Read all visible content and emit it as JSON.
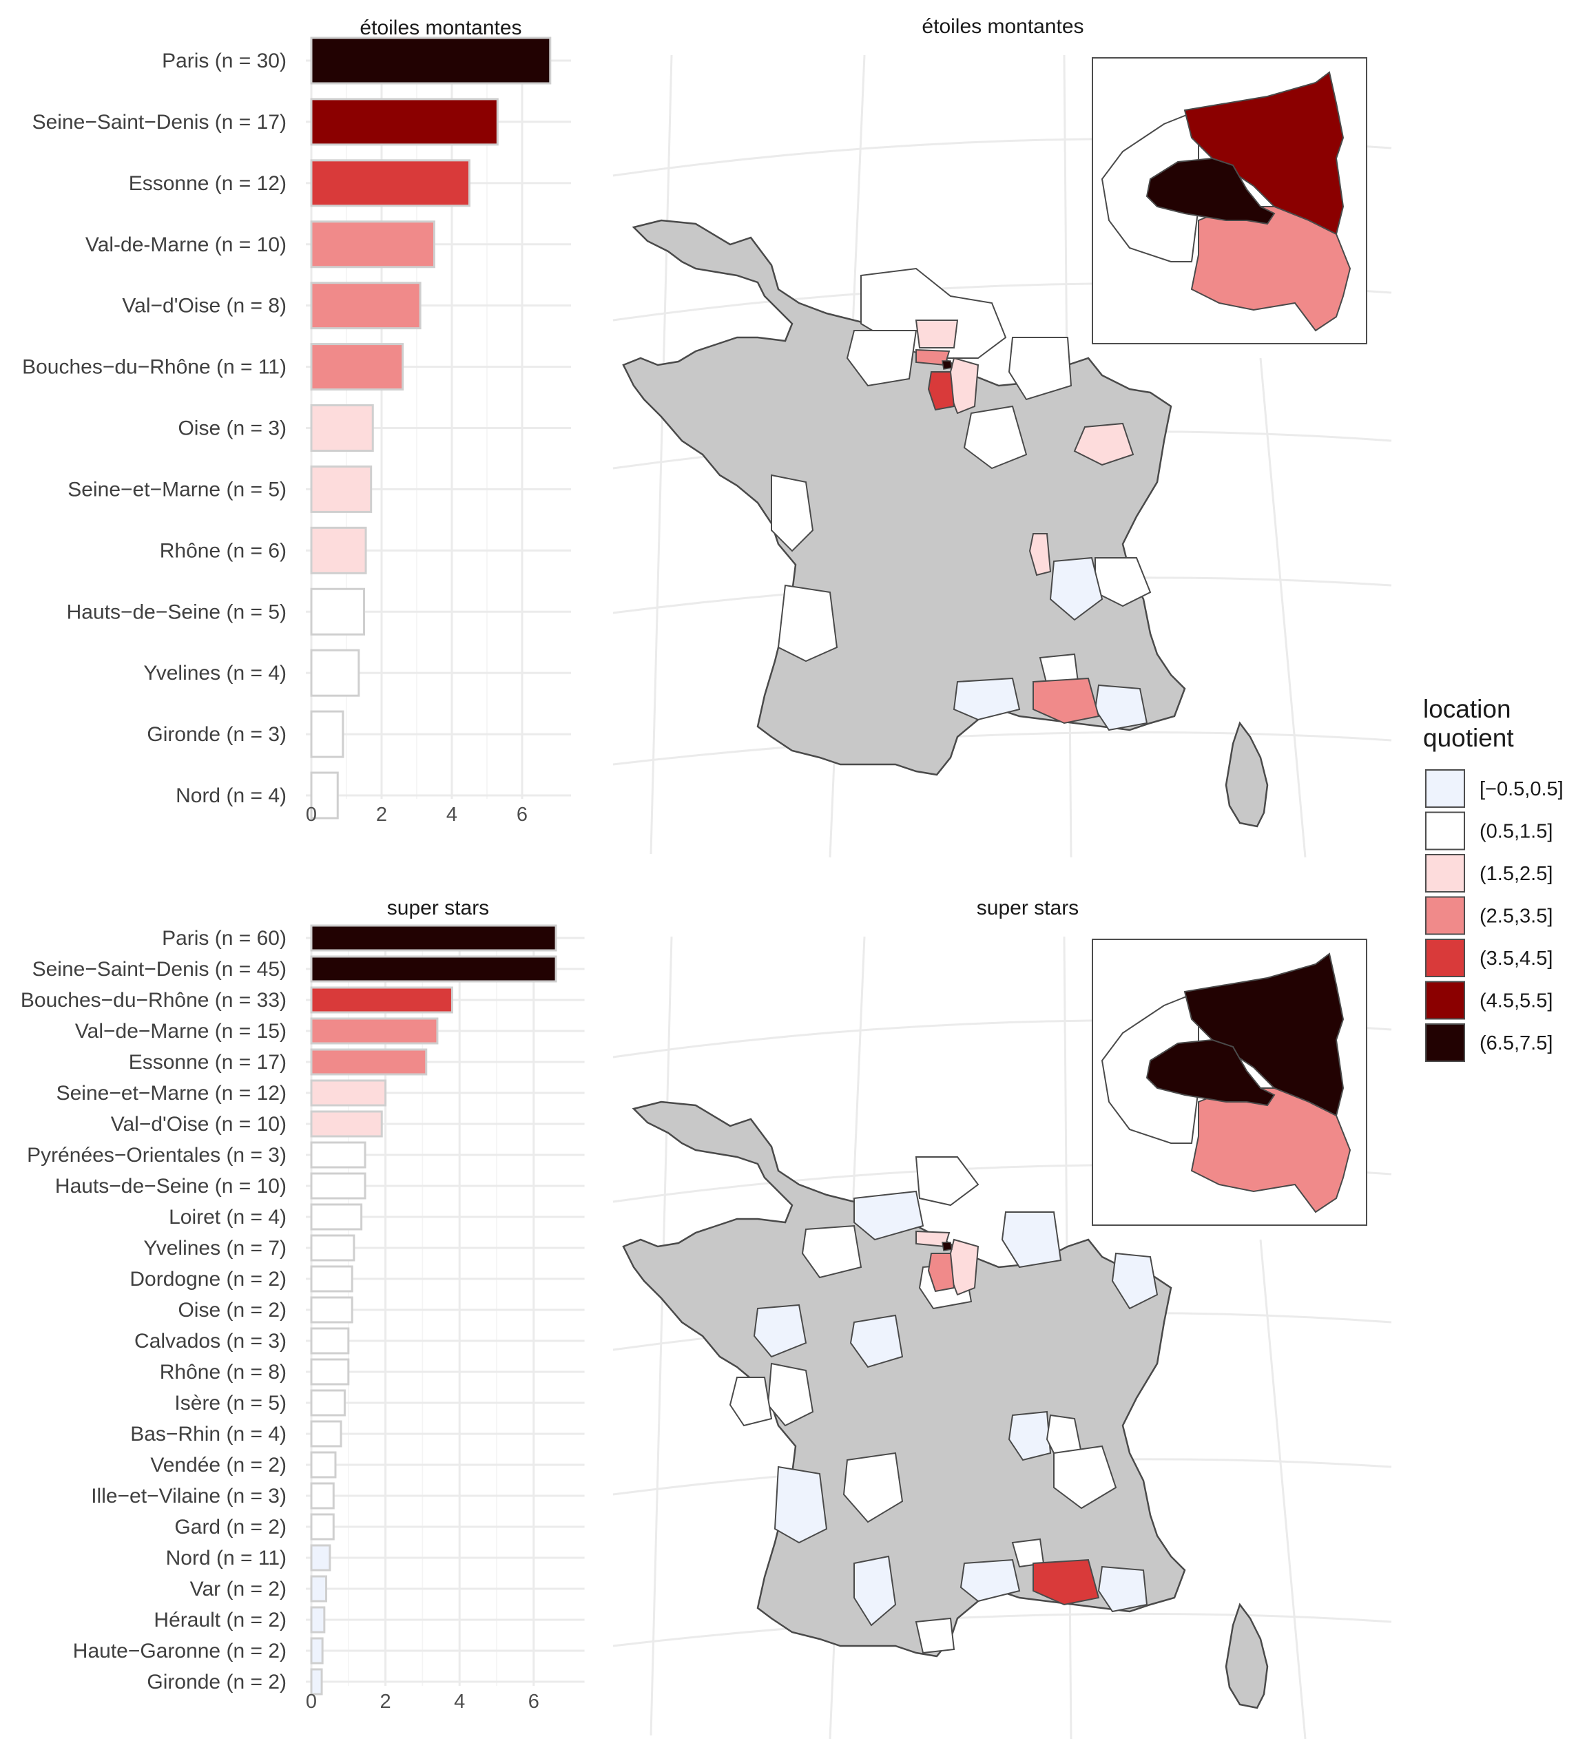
{
  "chart_data": [
    {
      "type": "bar",
      "orientation": "horizontal",
      "title": "étoiles montantes",
      "value_name": "location quotient",
      "categories": [
        "Paris (n = 30)",
        "Seine−Saint−Denis (n = 17)",
        "Essonne (n = 12)",
        "Val-de-Marne (n = 10)",
        "Val−d'Oise (n = 8)",
        "Bouches−du−Rhône (n = 11)",
        "Oise (n = 3)",
        "Seine−et−Marne (n = 5)",
        "Rhône (n = 6)",
        "Hauts−de−Seine (n = 5)",
        "Yvelines (n = 4)",
        "Gironde (n = 3)",
        "Nord (n = 4)"
      ],
      "values": [
        6.8,
        5.3,
        4.5,
        3.5,
        3.1,
        2.6,
        1.75,
        1.7,
        1.55,
        1.5,
        1.35,
        0.9,
        0.75
      ],
      "xlim": [
        0,
        7
      ],
      "xticks": [
        0,
        2,
        4,
        6
      ],
      "xlabel": "",
      "ylabel": ""
    },
    {
      "type": "bar",
      "orientation": "horizontal",
      "title": "super stars",
      "value_name": "location quotient",
      "categories": [
        "Paris (n = 60)",
        "Seine−Saint−Denis (n = 45)",
        "Bouches−du−Rhône (n = 33)",
        "Val−de−Marne (n = 15)",
        "Essonne (n = 17)",
        "Seine−et−Marne (n = 12)",
        "Val−d'Oise (n = 10)",
        "Pyrénées−Orientales (n = 3)",
        "Hauts−de−Seine (n = 10)",
        "Loiret (n = 4)",
        "Yvelines (n = 7)",
        "Dordogne (n = 2)",
        "Oise (n = 2)",
        "Calvados (n = 3)",
        "Rhône (n = 8)",
        "Isère (n = 5)",
        "Bas−Rhin (n = 4)",
        "Vendée (n = 2)",
        "Ille−et−Vilaine (n = 3)",
        "Gard (n = 2)",
        "Nord (n = 11)",
        "Var (n = 2)",
        "Hérault (n = 2)",
        "Haute−Garonne (n = 2)",
        "Gironde (n = 2)"
      ],
      "values": [
        6.6,
        6.6,
        3.8,
        3.4,
        3.1,
        2.0,
        1.9,
        1.45,
        1.45,
        1.35,
        1.15,
        1.1,
        1.1,
        1.0,
        1.0,
        0.9,
        0.8,
        0.65,
        0.6,
        0.6,
        0.5,
        0.4,
        0.35,
        0.3,
        0.28
      ],
      "xlim": [
        0,
        7
      ],
      "xticks": [
        0,
        2,
        4,
        6
      ],
      "xlabel": "",
      "ylabel": ""
    },
    {
      "type": "map",
      "title": "étoiles montantes",
      "region": "France départements (with Paris area inset)"
    },
    {
      "type": "map",
      "title": "super stars",
      "region": "France départements (with Paris area inset)"
    }
  ],
  "legend": {
    "title_line1": "location",
    "title_line2": "quotient",
    "items": [
      {
        "label": "[−0.5,0.5]",
        "color": "#eef3fd"
      },
      {
        "label": "(0.5,1.5]",
        "color": "#ffffff"
      },
      {
        "label": "(1.5,2.5]",
        "color": "#fddcdc"
      },
      {
        "label": "(2.5,3.5]",
        "color": "#f08a8a"
      },
      {
        "label": "(3.5,4.5]",
        "color": "#d93a3a"
      },
      {
        "label": "(4.5,5.5]",
        "color": "#8b0000"
      },
      {
        "label": "(6.5,7.5]",
        "color": "#220202"
      }
    ]
  },
  "colors": {
    "map_fill_default": "#c8c8c8",
    "map_stroke": "#4a4a4a",
    "bar_stroke": "#cfcfcf"
  }
}
